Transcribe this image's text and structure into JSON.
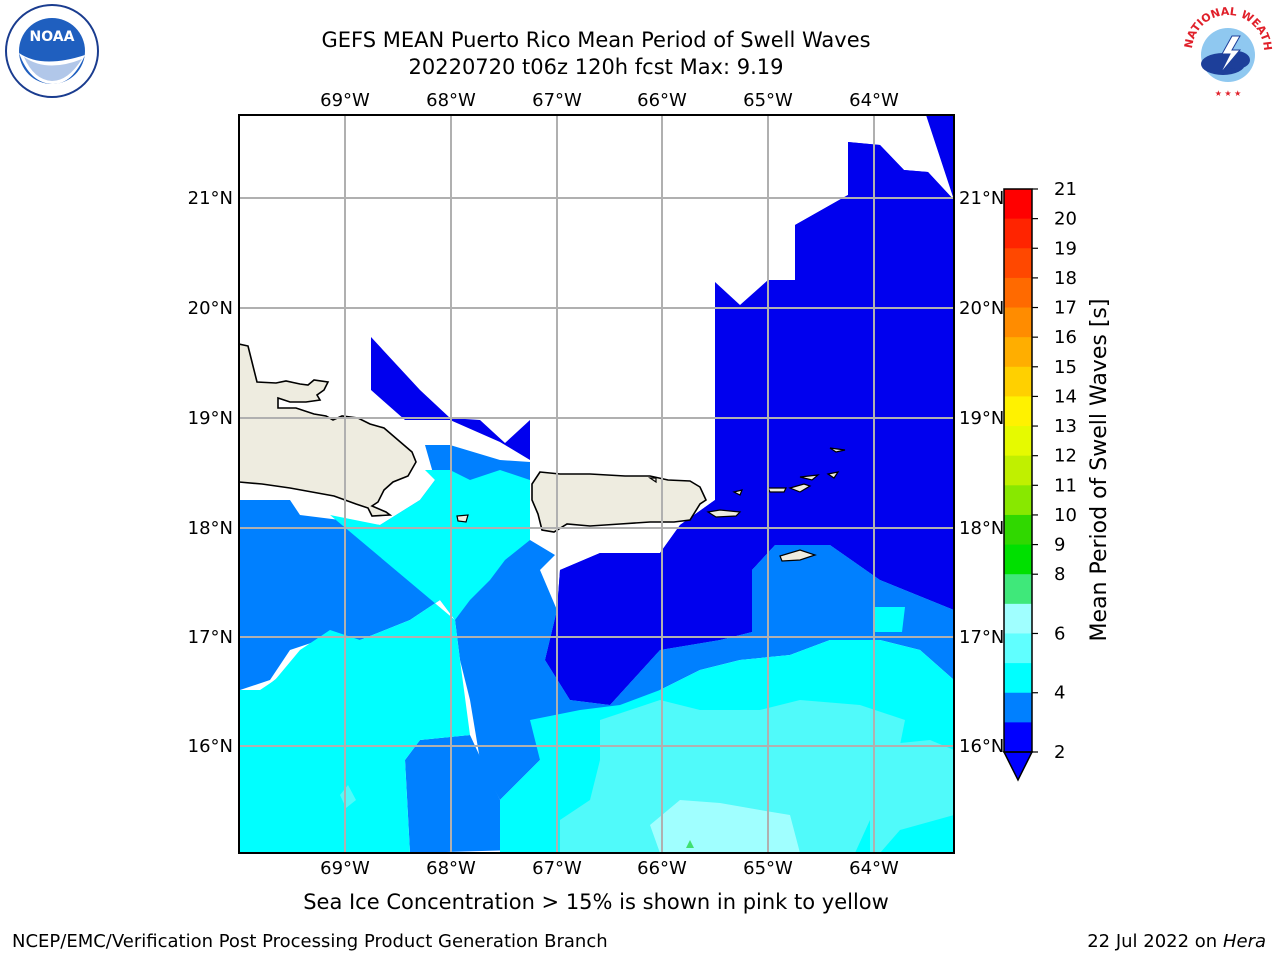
{
  "title_line1": "GEFS MEAN Puerto Rico Mean Period of Swell Waves",
  "title_line2": "20220720 t06z 120h fcst   Max: 9.19",
  "subcaption": "Sea Ice Concentration > 15% is shown in pink to yellow",
  "footer_left": "NCEP/EMC/Verification Post Processing Product Generation Branch",
  "footer_date": "22 Jul 2022 on",
  "footer_host": "Hera",
  "logos": {
    "left": "NOAA",
    "right": "NATIONAL WEATHER SERVICE"
  },
  "map": {
    "lon_labels": [
      "69°W",
      "68°W",
      "67°W",
      "66°W",
      "65°W",
      "64°W"
    ],
    "lat_labels": [
      "21°N",
      "20°N",
      "19°N",
      "18°N",
      "17°N",
      "16°N"
    ],
    "land_color": "#eeece0",
    "grid_color": "#b0b0b0"
  },
  "colorbar": {
    "label": "Mean Period of Swell Waves [s]",
    "ticks": [
      "21",
      "20",
      "19",
      "18",
      "17",
      "16",
      "15",
      "14",
      "13",
      "12",
      "11",
      "10",
      "9",
      "8",
      "6",
      "4",
      "2"
    ],
    "colors": [
      "#ff0000",
      "#ff2400",
      "#ff4800",
      "#ff6a00",
      "#ff8c00",
      "#ffae00",
      "#ffd000",
      "#fff200",
      "#e6fa00",
      "#c0f000",
      "#88e800",
      "#30d800",
      "#00e000",
      "#3fe87a",
      "#a0ffff",
      "#60ffff",
      "#00ffff",
      "#0080ff",
      "#0000ff"
    ],
    "under_color": "#0000ff"
  },
  "wave_colors": {
    "lt2": "#0000ee",
    "2to4": "#0080ff",
    "4to6": "#00ffff",
    "6to8": "#50fafa",
    "8to9": "#a0ffff",
    "9to10": "#40e070"
  }
}
